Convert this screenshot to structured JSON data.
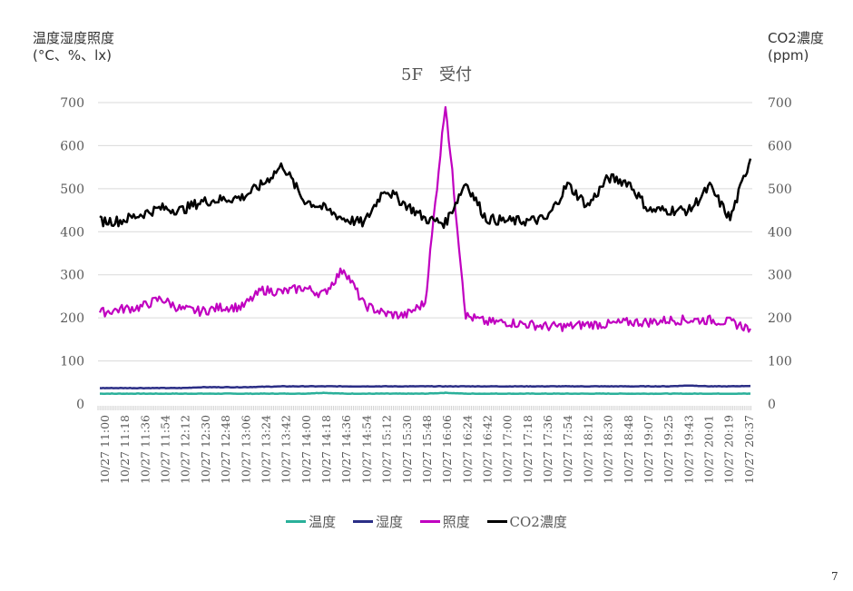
{
  "slide": {
    "page_number": "7"
  },
  "colors": {
    "temperature": "#2ab09a",
    "humidity": "#2b2e86",
    "illuminance": "#c000c0",
    "co2": "#000000",
    "grid": "#d9d9d9",
    "tick_text": "#595959"
  },
  "chart_data": {
    "type": "line",
    "title": "5F　受付",
    "ylabel_left": "温度湿度照度\n(°C、%、lx)",
    "ylabel_left_line1": "温度湿度照度",
    "ylabel_left_line2": "(°C、%、lx)",
    "ylabel_right_line1": "CO2濃度",
    "ylabel_right_line2": "(ppm)",
    "ylim_left": [
      0,
      700
    ],
    "ylim_right": [
      0,
      700
    ],
    "yticks": [
      0,
      100,
      200,
      300,
      400,
      500,
      600,
      700
    ],
    "grid": true,
    "legend_position": "bottom",
    "x": [
      "10/27 11:00",
      "10/27 11:18",
      "10/27 11:36",
      "10/27 11:54",
      "10/27 12:12",
      "10/27 12:30",
      "10/27 12:48",
      "10/27 13:06",
      "10/27 13:24",
      "10/27 13:42",
      "10/27 14:00",
      "10/27 14:18",
      "10/27 14:36",
      "10/27 14:54",
      "10/27 15:12",
      "10/27 15:30",
      "10/27 15:48",
      "10/27 16:06",
      "10/27 16:24",
      "10/27 16:42",
      "10/27 17:00",
      "10/27 17:18",
      "10/27 17:36",
      "10/27 17:54",
      "10/27 18:12",
      "10/27 18:30",
      "10/27 18:48",
      "10/27 19:07",
      "10/27 19:25",
      "10/27 19:43",
      "10/27 20:01",
      "10/27 20:19",
      "10/27 20:37"
    ],
    "series": [
      {
        "name": "温度",
        "axis": "left",
        "color": "#2ab09a",
        "values": [
          24,
          24,
          24,
          24,
          24,
          24,
          24,
          24,
          24,
          24,
          24,
          26,
          24,
          24,
          24,
          24,
          24,
          26,
          24,
          24,
          24,
          24,
          24,
          24,
          24,
          24,
          24,
          24,
          24,
          24,
          24,
          24,
          24
        ]
      },
      {
        "name": "湿度",
        "axis": "left",
        "color": "#2b2e86",
        "values": [
          37,
          37,
          37,
          37,
          37,
          39,
          39,
          39,
          40,
          41,
          41,
          41,
          41,
          41,
          41,
          41,
          41,
          41,
          41,
          41,
          41,
          41,
          41,
          41,
          41,
          41,
          41,
          41,
          41,
          43,
          41,
          41,
          42
        ]
      },
      {
        "name": "照度",
        "axis": "left",
        "color": "#c000c0",
        "values": [
          212,
          220,
          225,
          245,
          220,
          215,
          225,
          225,
          265,
          260,
          270,
          255,
          315,
          230,
          210,
          205,
          235,
          700,
          205,
          190,
          190,
          185,
          180,
          180,
          185,
          185,
          190,
          190,
          195,
          195,
          195,
          190,
          175
        ]
      },
      {
        "name": "CO2濃度",
        "axis": "right",
        "color": "#000000",
        "values": [
          425,
          425,
          440,
          455,
          450,
          470,
          475,
          480,
          510,
          555,
          475,
          455,
          430,
          420,
          500,
          465,
          430,
          420,
          515,
          430,
          425,
          425,
          430,
          510,
          460,
          525,
          515,
          450,
          450,
          450,
          505,
          430,
          570
        ]
      }
    ]
  },
  "legend": {
    "items": [
      {
        "label": "温度",
        "color": "#2ab09a"
      },
      {
        "label": "湿度",
        "color": "#2b2e86"
      },
      {
        "label": "照度",
        "color": "#c000c0"
      },
      {
        "label": "CO2濃度",
        "color": "#000000"
      }
    ]
  }
}
